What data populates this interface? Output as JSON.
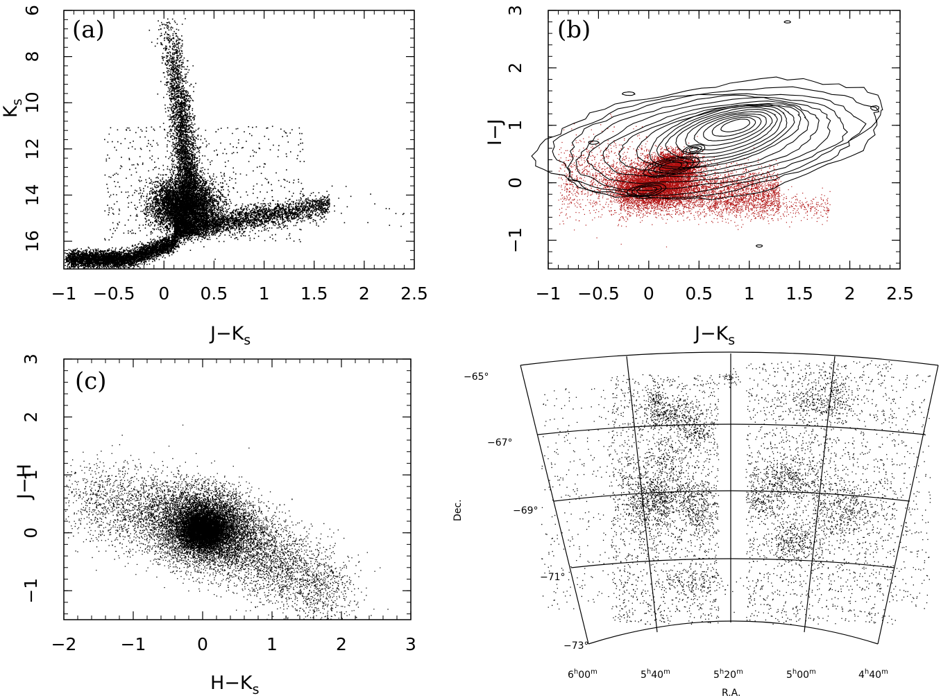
{
  "chart_data": [
    {
      "type": "scatter",
      "panel_label": "(a)",
      "xlabel": "J−K",
      "xlabel_sub": "s",
      "ylabel": "K",
      "ylabel_sub": "s",
      "xlim": [
        -1,
        2.5
      ],
      "ylim": [
        17.2,
        6
      ],
      "y_inverted": true,
      "xticks": [
        -1,
        -0.5,
        0,
        0.5,
        1,
        1.5,
        2,
        2.5
      ],
      "xticklabels": [
        "−1",
        "−0.5",
        "0",
        "0.5",
        "1",
        "1.5",
        "2",
        "2.5"
      ],
      "yticks": [
        6,
        8,
        10,
        12,
        14,
        16
      ],
      "yticklabels": [
        "6",
        "8",
        "10",
        "12",
        "14",
        "16"
      ],
      "grid": false,
      "point_color": "#000000",
      "clusters": [
        {
          "name": "red-giant-branch plume",
          "x": [
            0.05,
            0.15,
            0.2,
            0.25,
            0.25
          ],
          "y": [
            6.5,
            8.5,
            10,
            12,
            13.5
          ],
          "density": "medium"
        },
        {
          "name": "red clump",
          "x": [
            0.1,
            0.4
          ],
          "y": [
            14,
            14.6
          ],
          "density": "high"
        },
        {
          "name": "main-sequence sequence",
          "x": [
            -0.9,
            -0.5,
            0
          ],
          "y": [
            16.8,
            16.7,
            15.5
          ],
          "density": "high"
        },
        {
          "name": "red tail",
          "x": [
            0.5,
            1.0,
            1.6
          ],
          "y": [
            15.4,
            15.1,
            14.4
          ],
          "density": "low"
        }
      ]
    },
    {
      "type": "scatter",
      "panel_label": "(b)",
      "xlabel": "J−K",
      "xlabel_sub": "s",
      "ylabel": "I−J",
      "xlim": [
        -1,
        2.5
      ],
      "ylim": [
        -1.5,
        3
      ],
      "xticks": [
        -1,
        -0.5,
        0,
        0.5,
        1,
        1.5,
        2,
        2.5
      ],
      "xticklabels": [
        "−1",
        "−0.5",
        "0",
        "0.5",
        "1",
        "1.5",
        "2",
        "2.5"
      ],
      "yticks": [
        -1,
        0,
        1,
        2,
        3
      ],
      "yticklabels": [
        "−1",
        "0",
        "1",
        "2",
        "3"
      ],
      "grid": false,
      "point_color": "#b01010",
      "contour_color": "#000000",
      "contour_peaks": [
        {
          "x": 0.9,
          "y": 1.05
        },
        {
          "x": 0.45,
          "y": 0.6
        },
        {
          "x": 0.2,
          "y": 0.3
        },
        {
          "x": -0.05,
          "y": -0.15
        }
      ],
      "red_points_center": {
        "x": 0.05,
        "y": 0.0
      }
    },
    {
      "type": "scatter",
      "panel_label": "(c)",
      "xlabel": "H−K",
      "xlabel_sub": "s",
      "ylabel": "J−H",
      "xlim": [
        -2,
        3
      ],
      "ylim": [
        -1.5,
        3
      ],
      "xticks": [
        -2,
        -1,
        0,
        1,
        2,
        3
      ],
      "xticklabels": [
        "−2",
        "−1",
        "0",
        "1",
        "2",
        "3"
      ],
      "yticks": [
        -1,
        0,
        1,
        2,
        3
      ],
      "yticklabels": [
        "−1",
        "0",
        "1",
        "2",
        "3"
      ],
      "grid": false,
      "point_color": "#000000",
      "core": {
        "x": 0.0,
        "y": 0.05
      }
    },
    {
      "type": "scatter",
      "panel_label": "",
      "xlabel": "R.A.",
      "ylabel": "Dec.",
      "ra_labels": [
        {
          "h": "6",
          "hs": "h",
          "m": "00",
          "ms": "m"
        },
        {
          "h": "5",
          "hs": "h",
          "m": "40",
          "ms": "m"
        },
        {
          "h": "5",
          "hs": "h",
          "m": "20",
          "ms": "m"
        },
        {
          "h": "5",
          "hs": "h",
          "m": "00",
          "ms": "m"
        },
        {
          "h": "4",
          "hs": "h",
          "m": "40",
          "ms": "m"
        }
      ],
      "dec_labels": [
        "−65°",
        "−67°",
        "−69°",
        "−71°",
        "−73°"
      ],
      "grid": true,
      "point_color": "#000000"
    }
  ]
}
